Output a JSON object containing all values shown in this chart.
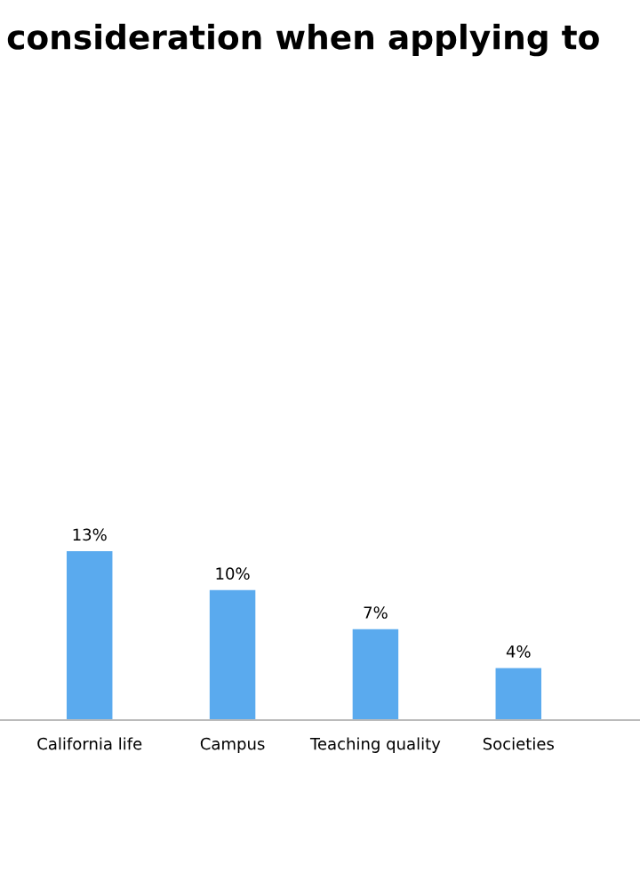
{
  "chart_data": {
    "type": "bar",
    "title": "consideration when applying to",
    "categories": [
      "California life",
      "Campus",
      "Teaching quality",
      "Societies"
    ],
    "values": [
      13,
      10,
      7,
      4
    ],
    "value_labels": [
      "13%",
      "10%",
      "7%",
      "4%"
    ],
    "color": "#5aaaee",
    "grid": false,
    "legend": false
  }
}
